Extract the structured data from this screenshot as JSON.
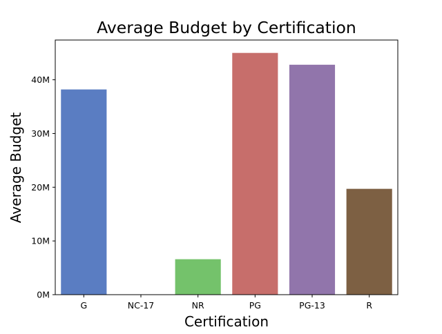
{
  "chart_data": {
    "type": "bar",
    "title": "Average Budget by Certification",
    "xlabel": "Certification",
    "ylabel": "Average Budget",
    "categories": [
      "G",
      "NC-17",
      "NR",
      "PG",
      "PG-13",
      "R"
    ],
    "values": [
      38200000,
      0,
      6600000,
      45000000,
      42800000,
      19700000
    ],
    "ylim": [
      0,
      47400000
    ],
    "yticks": [
      0,
      10000000,
      20000000,
      30000000,
      40000000
    ],
    "ytick_labels": [
      "0M",
      "10M",
      "20M",
      "30M",
      "40M"
    ],
    "bar_colors": [
      "#5a7dc2",
      "#c9c9c9",
      "#74c26b",
      "#c76e6b",
      "#9175ab",
      "#7d6043"
    ],
    "grid": false,
    "legend": "none"
  }
}
